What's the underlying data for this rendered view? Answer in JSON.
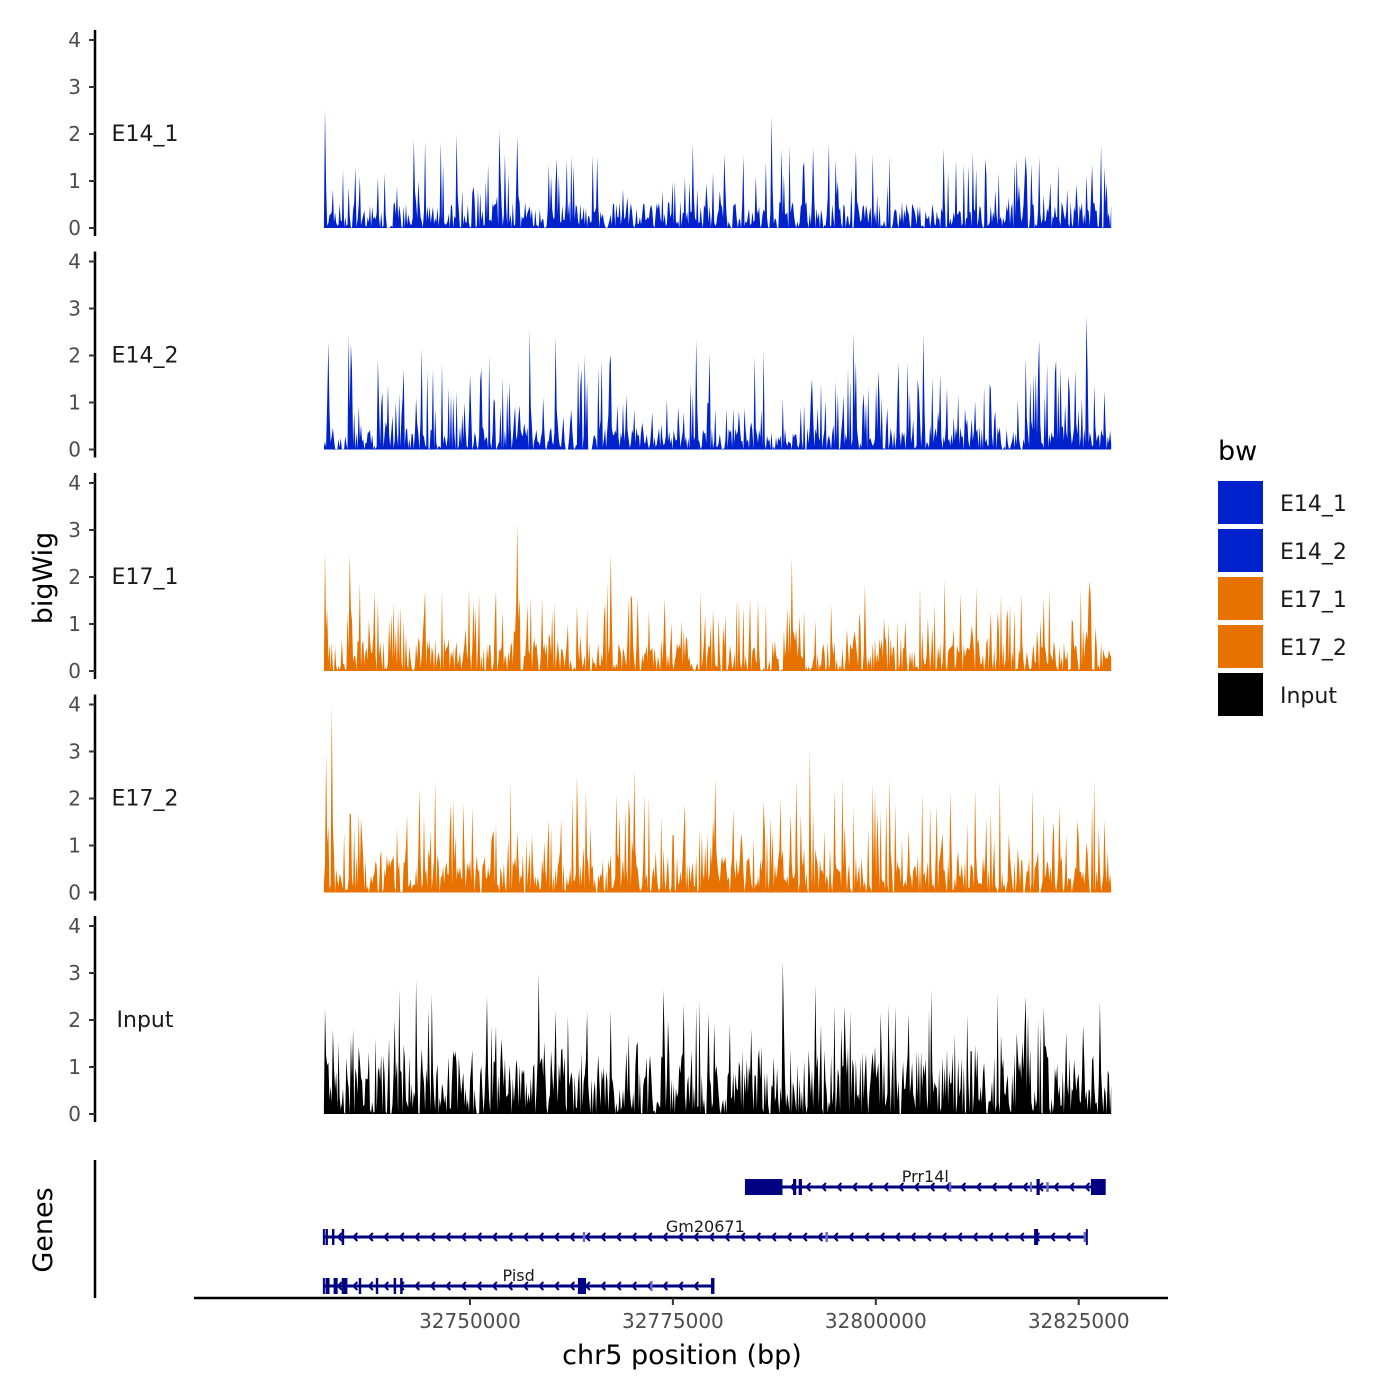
{
  "chart_data": {
    "type": "area",
    "title": "",
    "xlabel": "chr5 position (bp)",
    "ylabel": "bigWig",
    "genes_label": "Genes",
    "xlim": [
      32716000,
      32836000
    ],
    "data_range": [
      32732000,
      32829000
    ],
    "ylim": [
      0,
      4
    ],
    "y_ticks": [
      "0",
      "1",
      "2",
      "3",
      "4"
    ],
    "x_ticks": [
      {
        "value": 32750000,
        "label": "32750000"
      },
      {
        "value": 32775000,
        "label": "32775000"
      },
      {
        "value": 32800000,
        "label": "32800000"
      },
      {
        "value": 32825000,
        "label": "32825000"
      }
    ],
    "legend": {
      "title": "bw",
      "position": "right",
      "entries": [
        {
          "label": "E14_1",
          "color": "#0022cc"
        },
        {
          "label": "E14_2",
          "color": "#0022cc"
        },
        {
          "label": "E17_1",
          "color": "#e87200"
        },
        {
          "label": "E17_2",
          "color": "#e87200"
        },
        {
          "label": "Input",
          "color": "#000000"
        }
      ]
    },
    "series": [
      {
        "name": "E14_1",
        "label": "E14_1",
        "color": "#0022cc",
        "seed": 11,
        "base": 0.35,
        "spike_rate": 0.22,
        "spike_max": 1.6,
        "peaks": [
          [
            32732200,
            2.55
          ],
          [
            32748300,
            2.0
          ],
          [
            32755900,
            1.95
          ],
          [
            32777400,
            1.8
          ],
          [
            32787200,
            2.4
          ],
          [
            32792300,
            1.7
          ],
          [
            32797500,
            1.65
          ],
          [
            32808300,
            1.7
          ],
          [
            32826700,
            1.35
          ],
          [
            32828100,
            1.3
          ]
        ]
      },
      {
        "name": "E14_2",
        "label": "E14_2",
        "color": "#0022cc",
        "seed": 23,
        "base": 0.3,
        "spike_rate": 0.32,
        "spike_max": 1.9,
        "peaks": [
          [
            32732600,
            2.3
          ],
          [
            32735000,
            2.45
          ],
          [
            32750000,
            1.6
          ],
          [
            32757300,
            2.55
          ],
          [
            32760500,
            2.4
          ],
          [
            32777800,
            2.35
          ],
          [
            32797300,
            2.5
          ],
          [
            32805900,
            2.45
          ],
          [
            32818500,
            1.95
          ],
          [
            32826000,
            2.85
          ],
          [
            32828200,
            1.25
          ]
        ]
      },
      {
        "name": "E17_1",
        "label": "E17_1",
        "color": "#e87200",
        "seed": 37,
        "base": 0.45,
        "spike_rate": 0.3,
        "spike_max": 1.5,
        "peaks": [
          [
            32732200,
            2.55
          ],
          [
            32735200,
            2.5
          ],
          [
            32750400,
            1.5
          ],
          [
            32755900,
            3.15
          ],
          [
            32767300,
            2.5
          ],
          [
            32774000,
            1.55
          ],
          [
            32789600,
            2.45
          ],
          [
            32798600,
            1.85
          ],
          [
            32810500,
            1.65
          ],
          [
            32817900,
            1.65
          ],
          [
            32820700,
            1.55
          ],
          [
            32826200,
            1.6
          ]
        ]
      },
      {
        "name": "E17_2",
        "label": "E17_2",
        "color": "#e87200",
        "seed": 53,
        "base": 0.5,
        "spike_rate": 0.32,
        "spike_max": 1.8,
        "peaks": [
          [
            32732300,
            3.0
          ],
          [
            32733000,
            4.0
          ],
          [
            32749200,
            1.9
          ],
          [
            32764300,
            2.2
          ],
          [
            32770300,
            2.6
          ],
          [
            32780200,
            2.45
          ],
          [
            32788300,
            2.0
          ],
          [
            32790200,
            2.4
          ],
          [
            32791800,
            3.05
          ],
          [
            32801700,
            2.45
          ],
          [
            32812200,
            2.2
          ],
          [
            32822600,
            1.85
          ],
          [
            32827500,
            1.4
          ]
        ]
      },
      {
        "name": "Input",
        "label": "Input",
        "color": "#000000",
        "seed": 71,
        "base": 0.85,
        "spike_rate": 0.3,
        "spike_max": 1.4,
        "peaks": [
          [
            32732200,
            2.25
          ],
          [
            32741300,
            2.65
          ],
          [
            32743300,
            2.85
          ],
          [
            32745300,
            2.55
          ],
          [
            32752100,
            2.5
          ],
          [
            32758500,
            3.0
          ],
          [
            32760500,
            2.2
          ],
          [
            32767400,
            2.2
          ],
          [
            32773800,
            2.65
          ],
          [
            32779400,
            2.15
          ],
          [
            32784600,
            1.8
          ],
          [
            32788500,
            3.25
          ],
          [
            32792600,
            2.75
          ],
          [
            32796100,
            2.3
          ],
          [
            32800600,
            2.15
          ],
          [
            32802400,
            2.3
          ],
          [
            32806800,
            2.65
          ],
          [
            32811300,
            2.1
          ],
          [
            32823400,
            1.75
          ],
          [
            32827600,
            2.4
          ]
        ]
      }
    ],
    "genes": [
      {
        "name": "Prr14l",
        "label": "Prr14l",
        "start": 32784000,
        "end": 32828200,
        "strand": "-",
        "row": 0,
        "exons": [
          [
            32784000,
            32788500,
            "cds"
          ],
          [
            32789800,
            32790200,
            "cds"
          ],
          [
            32790500,
            32790900,
            "cds"
          ],
          [
            32809000,
            32809300,
            "utr"
          ],
          [
            32819000,
            32819200,
            "utr"
          ],
          [
            32819800,
            32820200,
            "cds"
          ],
          [
            32821000,
            32821300,
            "utr"
          ],
          [
            32826500,
            32828200,
            "cds"
          ]
        ]
      },
      {
        "name": "Gm20671",
        "label": "Gm20671",
        "start": 32732000,
        "end": 32826000,
        "strand": "-",
        "row": 1,
        "exons": [
          [
            32732200,
            32732500,
            "cds"
          ],
          [
            32733000,
            32733300,
            "cds"
          ],
          [
            32734200,
            32734500,
            "cds"
          ],
          [
            32763900,
            32764200,
            "utr"
          ],
          [
            32793800,
            32794100,
            "utr"
          ],
          [
            32819500,
            32820000,
            "cds"
          ],
          [
            32825600,
            32826000,
            "utr"
          ]
        ]
      },
      {
        "name": "Pisd",
        "label": "Pisd",
        "start": 32732000,
        "end": 32780000,
        "strand": "-",
        "row": 2,
        "exons": [
          [
            32732200,
            32732700,
            "cds"
          ],
          [
            32733200,
            32733700,
            "cds"
          ],
          [
            32734200,
            32734900,
            "cds"
          ],
          [
            32736300,
            32736600,
            "cds"
          ],
          [
            32738400,
            32738700,
            "cds"
          ],
          [
            32740600,
            32740900,
            "cds"
          ],
          [
            32741400,
            32741700,
            "cds"
          ],
          [
            32763300,
            32764300,
            "cds"
          ],
          [
            32772200,
            32772500,
            "utr"
          ],
          [
            32779700,
            32780000,
            "cds"
          ]
        ]
      }
    ]
  }
}
